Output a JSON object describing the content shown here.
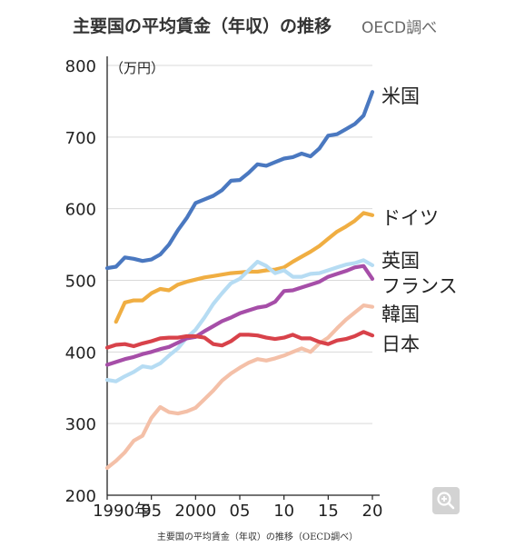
{
  "header": {
    "title": "主要国の平均賃金（年収）の推移",
    "source": "OECD調べ"
  },
  "caption": "主要国の平均賃金（年収）の推移（OECD調べ）",
  "zoom_icon": "zoom-in-icon",
  "chart_data": {
    "type": "line",
    "title": "主要国の平均賃金（年収）の推移",
    "ylabel": "（万円）",
    "ylim": [
      200,
      800
    ],
    "yticks": [
      "200",
      "300",
      "400",
      "500",
      "600",
      "700",
      "800"
    ],
    "xlim": [
      1990,
      2020
    ],
    "xticks": [
      {
        "x": 1990,
        "label": "1990年"
      },
      {
        "x": 1995,
        "label": "95"
      },
      {
        "x": 2000,
        "label": "2000"
      },
      {
        "x": 2005,
        "label": "05"
      },
      {
        "x": 2010,
        "label": "10"
      },
      {
        "x": 2015,
        "label": "15"
      },
      {
        "x": 2020,
        "label": "20"
      }
    ],
    "grid": true,
    "legend": "direct labels at line ends",
    "series": [
      {
        "name": "米国",
        "color": "#4a78c0",
        "x": [
          1990,
          1991,
          1992,
          1993,
          1994,
          1995,
          1996,
          1997,
          1998,
          1999,
          2000,
          2001,
          2002,
          2003,
          2004,
          2005,
          2006,
          2007,
          2008,
          2009,
          2010,
          2011,
          2012,
          2013,
          2014,
          2015,
          2016,
          2017,
          2018,
          2019,
          2020
        ],
        "y": [
          517,
          519,
          532,
          530,
          527,
          529,
          536,
          550,
          570,
          587,
          608,
          613,
          618,
          626,
          639,
          640,
          650,
          662,
          660,
          665,
          670,
          672,
          677,
          673,
          684,
          702,
          704,
          711,
          718,
          730,
          763
        ]
      },
      {
        "name": "ドイツ",
        "color": "#f0ae42",
        "x": [
          1991,
          1992,
          1993,
          1994,
          1995,
          1996,
          1997,
          1998,
          1999,
          2000,
          2001,
          2002,
          2003,
          2004,
          2005,
          2006,
          2007,
          2008,
          2009,
          2010,
          2011,
          2012,
          2013,
          2014,
          2015,
          2016,
          2017,
          2018,
          2019,
          2020
        ],
        "y": [
          442,
          469,
          472,
          472,
          482,
          488,
          486,
          494,
          498,
          501,
          504,
          506,
          508,
          510,
          511,
          512,
          512,
          514,
          515,
          518,
          526,
          533,
          540,
          548,
          558,
          568,
          575,
          583,
          594,
          591
        ]
      },
      {
        "name": "英国",
        "color": "#b6dcf3",
        "x": [
          1990,
          1991,
          1992,
          1993,
          1994,
          1995,
          1996,
          1997,
          1998,
          1999,
          2000,
          2001,
          2002,
          2003,
          2004,
          2005,
          2006,
          2007,
          2008,
          2009,
          2010,
          2011,
          2012,
          2013,
          2014,
          2015,
          2016,
          2017,
          2018,
          2019,
          2020
        ],
        "y": [
          361,
          359,
          366,
          372,
          380,
          378,
          384,
          395,
          405,
          420,
          431,
          448,
          467,
          482,
          496,
          502,
          514,
          526,
          520,
          510,
          514,
          505,
          505,
          509,
          510,
          514,
          518,
          522,
          524,
          528,
          521
        ]
      },
      {
        "name": "フランス",
        "color": "#a64ea8",
        "x": [
          1990,
          1991,
          1992,
          1993,
          1994,
          1995,
          1996,
          1997,
          1998,
          1999,
          2000,
          2001,
          2002,
          2003,
          2004,
          2005,
          2006,
          2007,
          2008,
          2009,
          2010,
          2011,
          2012,
          2013,
          2014,
          2015,
          2016,
          2017,
          2018,
          2019,
          2020
        ],
        "y": [
          382,
          386,
          390,
          393,
          397,
          400,
          404,
          407,
          413,
          419,
          421,
          429,
          436,
          443,
          448,
          454,
          458,
          462,
          464,
          470,
          485,
          486,
          490,
          494,
          498,
          505,
          509,
          513,
          518,
          520,
          502
        ]
      },
      {
        "name": "韓国",
        "color": "#f4c0a8",
        "x": [
          1990,
          1991,
          1992,
          1993,
          1994,
          1995,
          1996,
          1997,
          1998,
          1999,
          2000,
          2001,
          2002,
          2003,
          2004,
          2005,
          2006,
          2007,
          2008,
          2009,
          2010,
          2011,
          2012,
          2013,
          2014,
          2015,
          2016,
          2017,
          2018,
          2019,
          2020
        ],
        "y": [
          238,
          248,
          260,
          276,
          283,
          308,
          323,
          316,
          314,
          317,
          322,
          334,
          346,
          360,
          370,
          378,
          385,
          390,
          388,
          391,
          395,
          400,
          405,
          400,
          412,
          420,
          433,
          445,
          455,
          465,
          463
        ]
      },
      {
        "name": "日本",
        "color": "#d8424a",
        "x": [
          1990,
          1991,
          1992,
          1993,
          1994,
          1995,
          1996,
          1997,
          1998,
          1999,
          2000,
          2001,
          2002,
          2003,
          2004,
          2005,
          2006,
          2007,
          2008,
          2009,
          2010,
          2011,
          2012,
          2013,
          2014,
          2015,
          2016,
          2017,
          2018,
          2019,
          2020
        ],
        "y": [
          406,
          410,
          411,
          408,
          412,
          415,
          419,
          420,
          420,
          422,
          422,
          420,
          411,
          409,
          415,
          424,
          424,
          423,
          420,
          418,
          420,
          424,
          419,
          419,
          414,
          411,
          416,
          418,
          422,
          428,
          423
        ]
      }
    ]
  }
}
